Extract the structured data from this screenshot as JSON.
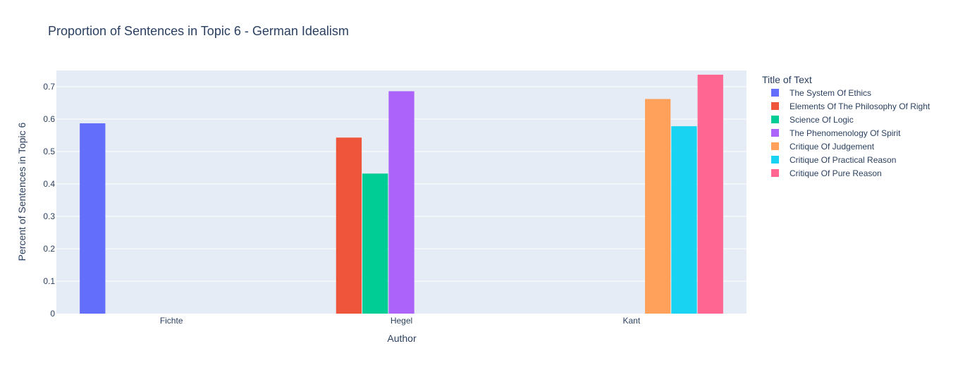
{
  "chart_data": {
    "type": "bar",
    "title": "Proportion of Sentences in Topic 6 - German Idealism",
    "xlabel": "Author",
    "ylabel": "Percent of Sentences in Topic 6",
    "categories": [
      "Fichte",
      "Hegel",
      "Kant"
    ],
    "ylim": [
      0,
      0.75
    ],
    "yticks": [
      0,
      0.1,
      0.2,
      0.3,
      0.4,
      0.5,
      0.6,
      0.7
    ],
    "grid": true,
    "legend_title": "Title of Text",
    "legend_position": "right",
    "series": [
      {
        "name": "The System Of Ethics",
        "color": "#636efa",
        "values": [
          0.587,
          null,
          null
        ]
      },
      {
        "name": "Elements Of The Philosophy Of Right",
        "color": "#ef553b",
        "values": [
          null,
          0.543,
          null
        ]
      },
      {
        "name": "Science Of Logic",
        "color": "#00cc96",
        "values": [
          null,
          0.432,
          null
        ]
      },
      {
        "name": "The Phenomenology Of Spirit",
        "color": "#ab63fa",
        "values": [
          null,
          0.686,
          null
        ]
      },
      {
        "name": "Critique Of Judgement",
        "color": "#ffa15a",
        "values": [
          null,
          null,
          0.662
        ]
      },
      {
        "name": "Critique Of Practical Reason",
        "color": "#19d3f3",
        "values": [
          null,
          null,
          0.578
        ]
      },
      {
        "name": "Critique Of Pure Reason",
        "color": "#ff6692",
        "values": [
          null,
          null,
          0.737
        ]
      }
    ]
  }
}
